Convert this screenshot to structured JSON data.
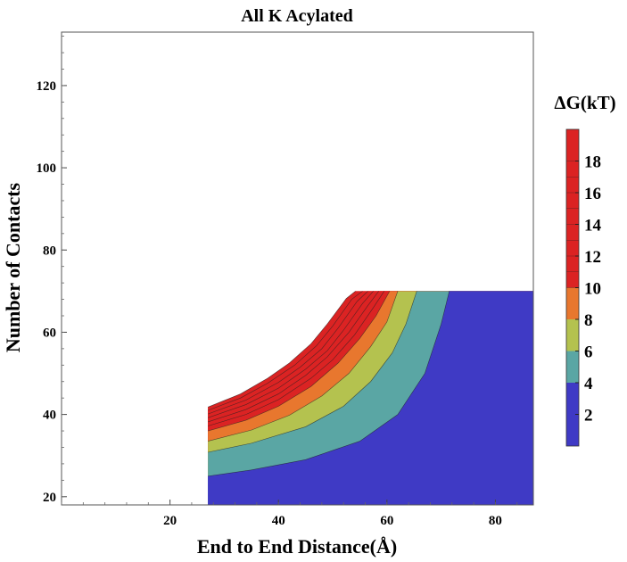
{
  "chart_data": {
    "type": "contour",
    "title": "All K Acylated",
    "xlabel": "End to End Distance(Å)",
    "ylabel": "Number of Contacts",
    "xlim": [
      0,
      87
    ],
    "ylim": [
      18,
      133
    ],
    "xticks": [
      20,
      40,
      60,
      80
    ],
    "yticks": [
      20,
      40,
      60,
      80,
      100,
      120
    ],
    "data_domain": {
      "x": [
        27,
        87
      ],
      "y": [
        18,
        70
      ]
    },
    "colorbar": {
      "title": "ΔG(kT)",
      "range": [
        0,
        20
      ],
      "ticks": [
        2,
        4,
        6,
        8,
        10,
        12,
        14,
        16,
        18
      ],
      "bands": [
        {
          "from": 0,
          "to": 4,
          "color": "#3f3ac5"
        },
        {
          "from": 4,
          "to": 6,
          "color": "#5aa6a4"
        },
        {
          "from": 6,
          "to": 8,
          "color": "#b4c24f"
        },
        {
          "from": 8,
          "to": 10,
          "color": "#e8772e"
        },
        {
          "from": 10,
          "to": 20,
          "color": "#db2323"
        }
      ]
    },
    "contour_levels": [
      {
        "level": 4,
        "x_at_y": [
          [
            27,
            25.0
          ],
          [
            35,
            26.5
          ],
          [
            45,
            29.0
          ],
          [
            55,
            33.5
          ],
          [
            62,
            40.0
          ],
          [
            67,
            50.0
          ],
          [
            70,
            62.0
          ],
          [
            71.5,
            70
          ]
        ]
      },
      {
        "level": 6,
        "x_at_y": [
          [
            27,
            30.8
          ],
          [
            35,
            33.0
          ],
          [
            45,
            37.0
          ],
          [
            52,
            42.0
          ],
          [
            57,
            48.0
          ],
          [
            61,
            55.0
          ],
          [
            63.5,
            62.0
          ],
          [
            65.5,
            70
          ]
        ]
      },
      {
        "level": 8,
        "x_at_y": [
          [
            27,
            33.5
          ],
          [
            35,
            36.2
          ],
          [
            42,
            39.8
          ],
          [
            48,
            44.5
          ],
          [
            53,
            50.0
          ],
          [
            57,
            56.5
          ],
          [
            60,
            62.5
          ],
          [
            62,
            70
          ]
        ]
      },
      {
        "level": 10,
        "x_at_y": [
          [
            27,
            36.0
          ],
          [
            34,
            38.6
          ],
          [
            40,
            42.0
          ],
          [
            46,
            46.8
          ],
          [
            51,
            52.5
          ],
          [
            55,
            58.5
          ],
          [
            58,
            64.0
          ],
          [
            60.5,
            70
          ]
        ]
      },
      {
        "level": 11,
        "x_at_y": [
          [
            27,
            37.2
          ],
          [
            34,
            40.0
          ],
          [
            40,
            43.6
          ],
          [
            46,
            48.8
          ],
          [
            50,
            53.3
          ],
          [
            54,
            59.3
          ],
          [
            57.5,
            66.0
          ],
          [
            59.5,
            70
          ]
        ]
      },
      {
        "level": 12,
        "x_at_y": [
          [
            27,
            38.2
          ],
          [
            34,
            41.2
          ],
          [
            40,
            45.0
          ],
          [
            45,
            49.5
          ],
          [
            49,
            54.0
          ],
          [
            53,
            60.0
          ],
          [
            56.5,
            66.5
          ],
          [
            58.5,
            70
          ]
        ]
      },
      {
        "level": 13,
        "x_at_y": [
          [
            27,
            39.2
          ],
          [
            34,
            42.4
          ],
          [
            40,
            46.4
          ],
          [
            45,
            51.0
          ],
          [
            49,
            55.5
          ],
          [
            52,
            60.5
          ],
          [
            55.5,
            67.0
          ],
          [
            57.5,
            70
          ]
        ]
      },
      {
        "level": 14,
        "x_at_y": [
          [
            27,
            40.1
          ],
          [
            34,
            43.5
          ],
          [
            40,
            47.8
          ],
          [
            44,
            51.5
          ],
          [
            48,
            56.0
          ],
          [
            51,
            61.0
          ],
          [
            54.5,
            67.5
          ],
          [
            56.5,
            70
          ]
        ]
      },
      {
        "level": 15,
        "x_at_y": [
          [
            27,
            41.0
          ],
          [
            33,
            44.0
          ],
          [
            38,
            47.6
          ],
          [
            43,
            52.0
          ],
          [
            47,
            56.7
          ],
          [
            50,
            61.5
          ],
          [
            53.5,
            68.0
          ],
          [
            55.5,
            70
          ]
        ]
      },
      {
        "level": 16,
        "x_at_y": [
          [
            27,
            41.8
          ],
          [
            33,
            45.0
          ],
          [
            38,
            48.8
          ],
          [
            42,
            52.5
          ],
          [
            46,
            57.2
          ],
          [
            49,
            62.0
          ],
          [
            52.5,
            68.2
          ],
          [
            54.2,
            70
          ]
        ]
      }
    ]
  }
}
